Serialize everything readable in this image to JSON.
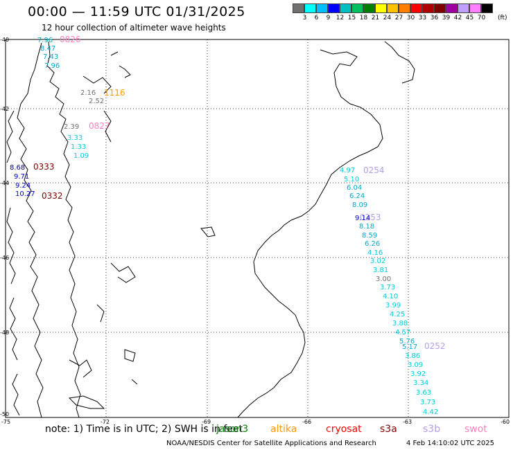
{
  "header": {
    "title": "00:00 — 11:59 UTC 01/31/2025",
    "subtitle": "12 hour collection of altimeter wave heights"
  },
  "legend": {
    "colors": [
      "#707070",
      "#00ffff",
      "#00bfff",
      "#0000ff",
      "#00c0c0",
      "#00c060",
      "#008000",
      "#ffff00",
      "#ffc000",
      "#ff8000",
      "#ff0000",
      "#b00000",
      "#800000",
      "#a000a0",
      "#c0a0ff",
      "#ff80ff",
      "#000000"
    ],
    "labels": [
      "3",
      "6",
      "9",
      "12",
      "15",
      "18",
      "21",
      "24",
      "27",
      "30",
      "33",
      "36",
      "39",
      "42",
      "45",
      "70"
    ],
    "unit": "(ft)"
  },
  "axes": {
    "lat_labels": [
      "-40",
      "-42",
      "-44",
      "-46",
      "-48",
      "-50"
    ],
    "lon_labels": [
      "-75",
      "-72",
      "-69",
      "-66",
      "-63",
      "-60"
    ]
  },
  "passes": [
    {
      "label": "0826",
      "color": "#ff80c0"
    },
    {
      "label": "1116",
      "color": "#ff9900"
    },
    {
      "label": "0827",
      "color": "#ff80c0"
    },
    {
      "label": "0333",
      "color": "#800000"
    },
    {
      "label": "0332",
      "color": "#800000"
    },
    {
      "label": "0254",
      "color": "#b0a0e8"
    },
    {
      "label": "0253",
      "color": "#b0a0e8"
    },
    {
      "label": "0252",
      "color": "#b0a0e8"
    }
  ],
  "track_values": [
    {
      "v": "7.96",
      "c": "#00aacc"
    },
    {
      "v": "8.47",
      "c": "#00aacc"
    },
    {
      "v": "7.43",
      "c": "#00aacc"
    },
    {
      "v": "7.96",
      "c": "#00aacc"
    },
    {
      "v": "2.16",
      "c": "#707070"
    },
    {
      "v": "2.52",
      "c": "#707070"
    },
    {
      "v": "2.39",
      "c": "#707070"
    },
    {
      "v": "3.33",
      "c": "#00ccdd"
    },
    {
      "v": "1.33",
      "c": "#00ccdd"
    },
    {
      "v": "1.09",
      "c": "#00ccdd"
    },
    {
      "v": "8.68",
      "c": "#000080"
    },
    {
      "v": "9.71",
      "c": "#0000cc"
    },
    {
      "v": "9.24",
      "c": "#0000cc"
    },
    {
      "v": "10.27",
      "c": "#0000cc"
    },
    {
      "v": "4.97",
      "c": "#00ccdd"
    },
    {
      "v": "5.10",
      "c": "#00ccdd"
    },
    {
      "v": "6.04",
      "c": "#00aacc"
    },
    {
      "v": "6.24",
      "c": "#00aacc"
    },
    {
      "v": "8.09",
      "c": "#00aacc"
    },
    {
      "v": "9.14",
      "c": "#0000cc"
    },
    {
      "v": "8.18",
      "c": "#00aacc"
    },
    {
      "v": "8.59",
      "c": "#00aacc"
    },
    {
      "v": "6.26",
      "c": "#00aacc"
    },
    {
      "v": "4.16",
      "c": "#00ccdd"
    },
    {
      "v": "3.02",
      "c": "#00ccdd"
    },
    {
      "v": "3.81",
      "c": "#00ccdd"
    },
    {
      "v": "3.00",
      "c": "#707070"
    },
    {
      "v": "3.73",
      "c": "#00ccdd"
    },
    {
      "v": "4.10",
      "c": "#00ccdd"
    },
    {
      "v": "3.99",
      "c": "#00ccdd"
    },
    {
      "v": "4.25",
      "c": "#00ccdd"
    },
    {
      "v": "3.88",
      "c": "#00ccdd"
    },
    {
      "v": "4.57",
      "c": "#00ccdd"
    },
    {
      "v": "5.76",
      "c": "#00aacc"
    },
    {
      "v": "5.17",
      "c": "#00aacc"
    },
    {
      "v": "3.86",
      "c": "#00ccdd"
    },
    {
      "v": "3.09",
      "c": "#00ccdd"
    },
    {
      "v": "3.92",
      "c": "#00ccdd"
    },
    {
      "v": "3.34",
      "c": "#00ccdd"
    },
    {
      "v": "3.63",
      "c": "#00ccdd"
    },
    {
      "v": "3.73",
      "c": "#00ccdd"
    },
    {
      "v": "4.42",
      "c": "#00ccdd"
    }
  ],
  "footer": {
    "note": "note:  1) Time is in UTC; 2) SWH is in feet",
    "satellites": [
      {
        "name": "jason3",
        "color": "#008000"
      },
      {
        "name": "altika",
        "color": "#ff9900"
      },
      {
        "name": "cryosat",
        "color": "#ff0000"
      },
      {
        "name": "s3a",
        "color": "#800000"
      },
      {
        "name": "s3b",
        "color": "#b0a0e8"
      },
      {
        "name": "swot",
        "color": "#ff80c0"
      }
    ],
    "credit": "NOAA/NESDIS Center for Satellite Applications and Research",
    "timestamp": "4 Feb 14:10:02 UTC 2025"
  }
}
